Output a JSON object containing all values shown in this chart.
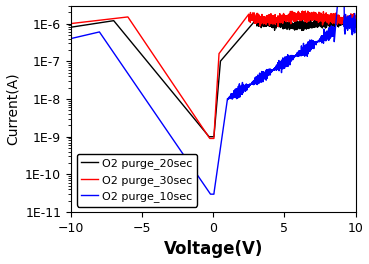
{
  "title": "",
  "xlabel": "Voltage(V)",
  "ylabel": "Current(A)",
  "xlim": [
    -10,
    10
  ],
  "ylim": [
    1e-11,
    3e-06
  ],
  "xticks": [
    -10,
    -5,
    0,
    5,
    10
  ],
  "yticks": [
    1e-11,
    1e-10,
    1e-09,
    1e-08,
    1e-07,
    1e-06
  ],
  "legend_labels": [
    "O2 purge_20sec",
    "O2 purge_30sec",
    "O2 purge_10sec"
  ],
  "line_colors": [
    "black",
    "red",
    "blue"
  ],
  "background_color": "#ffffff",
  "xlabel_fontsize": 12,
  "ylabel_fontsize": 10,
  "tick_fontsize": 9,
  "legend_fontsize": 8
}
